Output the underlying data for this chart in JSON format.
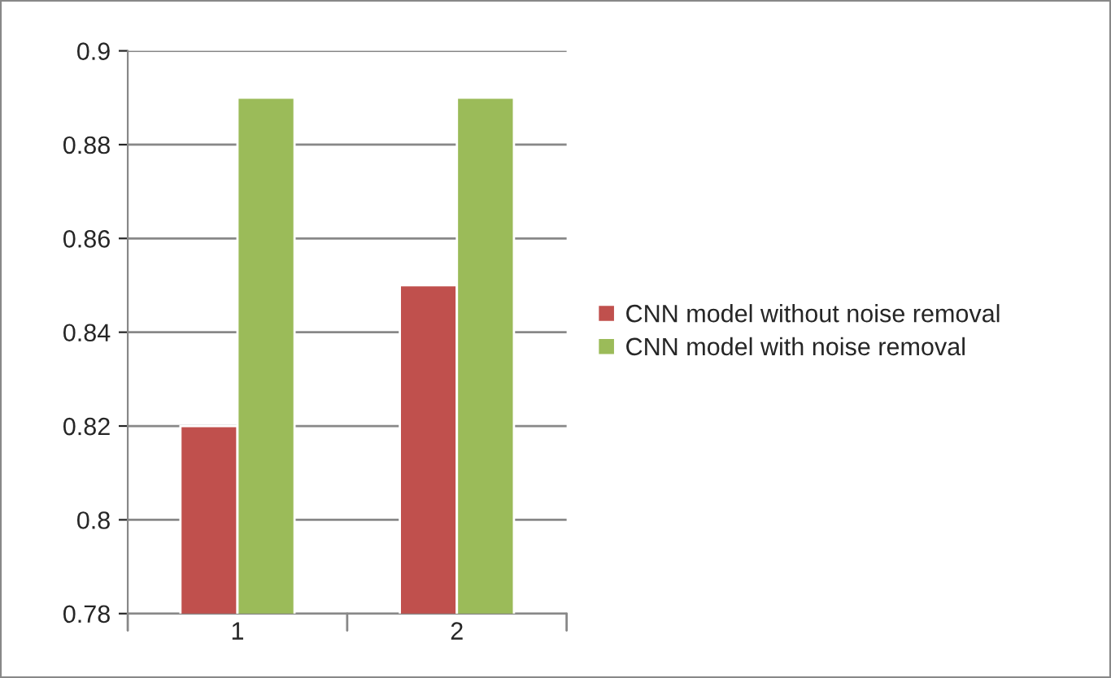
{
  "chart_data": {
    "type": "bar",
    "categories": [
      "1",
      "2"
    ],
    "series": [
      {
        "name": "CNN model without noise removal",
        "color": "#c0504d",
        "values": [
          0.82,
          0.85
        ]
      },
      {
        "name": "CNN model with noise removal",
        "color": "#9bbb59",
        "values": [
          0.89,
          0.89
        ]
      }
    ],
    "ylim": [
      0.78,
      0.9
    ],
    "yticks": [
      0.78,
      0.8,
      0.82,
      0.84,
      0.86,
      0.88,
      0.9
    ],
    "grid": "y",
    "legend": "right"
  }
}
